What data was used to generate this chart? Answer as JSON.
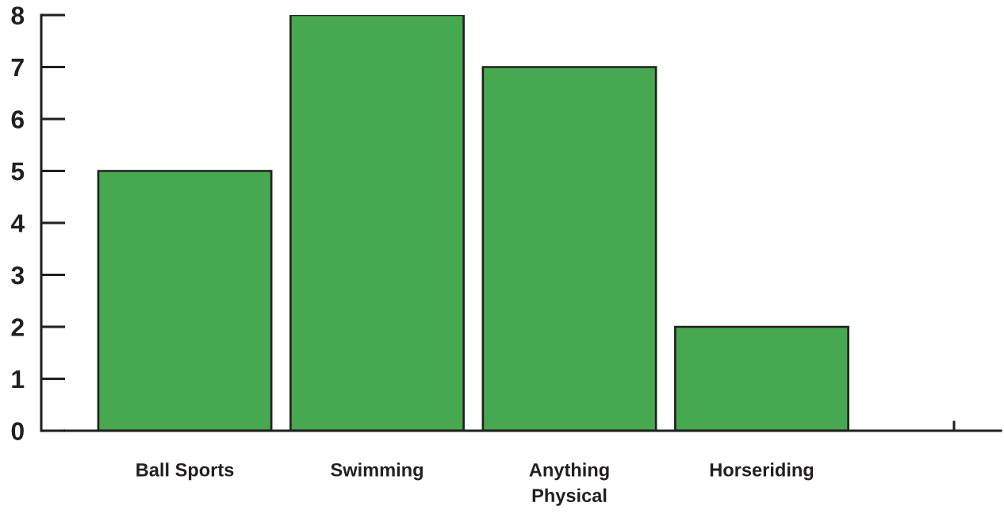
{
  "chart_data": {
    "type": "bar",
    "categories": [
      "Ball Sports",
      "Swimming",
      "Anything\nPhysical",
      "Horseriding",
      null
    ],
    "values": [
      5,
      8,
      7,
      2,
      null
    ],
    "color": "#46a94f",
    "ylim": [
      0,
      8
    ],
    "yticks": [
      0,
      1,
      2,
      3,
      4,
      5,
      6,
      7,
      8
    ]
  }
}
